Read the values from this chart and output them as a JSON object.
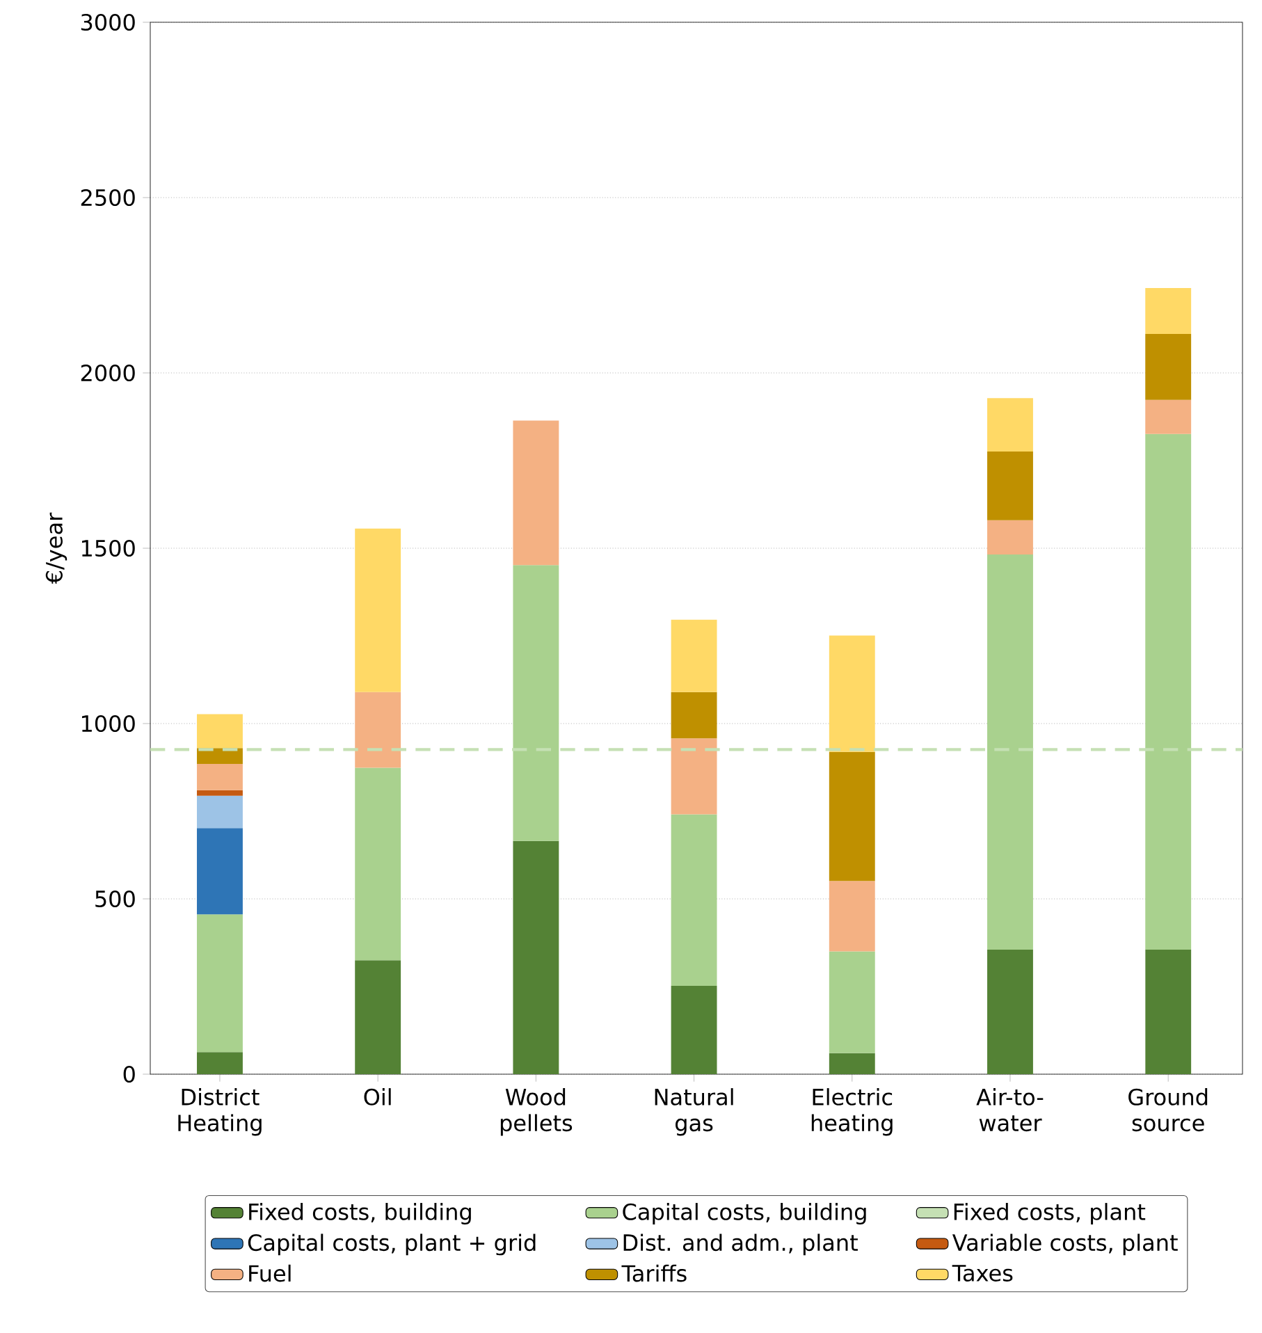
{
  "chart_data": {
    "type": "bar",
    "stacked": true,
    "ylabel": "€/year",
    "categories": [
      "District Heating",
      "Oil",
      "Wood pellets",
      "Natural gas",
      "Electric heating",
      "Air-to-water",
      "Ground source"
    ],
    "ylim": [
      0,
      3000
    ],
    "yticks": [
      0,
      500,
      1000,
      1500,
      2000,
      2500,
      3000
    ],
    "grid": "y",
    "legend": "bottom",
    "series": [
      {
        "name": "Fixed costs, building",
        "color": "#548235",
        "values": [
          63,
          325,
          665,
          252,
          60,
          355,
          355
        ]
      },
      {
        "name": "Capital costs, building",
        "color": "#a9d18e",
        "values": [
          393,
          549,
          787,
          489,
          290,
          1127,
          1471
        ]
      },
      {
        "name": "Fixed costs, plant",
        "color": "#c5e0b4",
        "values": [
          null,
          null,
          null,
          null,
          null,
          null,
          null
        ]
      },
      {
        "name": "Capital costs, plant + grid",
        "color": "#2e75b6",
        "values": [
          246,
          null,
          null,
          null,
          null,
          null,
          null
        ]
      },
      {
        "name": "Dist. and adm., plant",
        "color": "#9dc3e6",
        "values": [
          92,
          null,
          null,
          null,
          null,
          null,
          null
        ]
      },
      {
        "name": "Variable costs, plant",
        "color": "#c55a11",
        "values": [
          16,
          null,
          null,
          null,
          null,
          null,
          null
        ]
      },
      {
        "name": "Fuel",
        "color": "#f4b183",
        "values": [
          75,
          216,
          412,
          217,
          201,
          98,
          97
        ]
      },
      {
        "name": "Tariffs",
        "color": "#bf9000",
        "values": [
          45,
          null,
          null,
          132,
          368,
          196,
          188
        ]
      },
      {
        "name": "Taxes",
        "color": "#ffd966",
        "values": [
          97,
          466,
          null,
          206,
          332,
          152,
          131
        ]
      }
    ],
    "ref_lines": [
      {
        "axis": "y",
        "value": 926,
        "color": "#c5e0b4",
        "line_style": "dashed"
      }
    ]
  }
}
